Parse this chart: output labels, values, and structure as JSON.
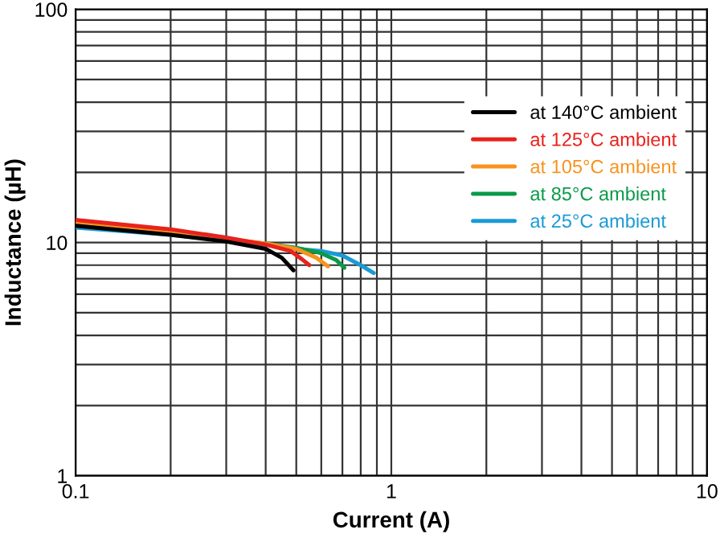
{
  "chart_data": {
    "type": "line",
    "xlabel": "Current (A)",
    "ylabel": "Inductance (µH)",
    "log": "xy",
    "grid": true,
    "legend": "top right",
    "line_style": "solid",
    "marker": "none",
    "xlim": [
      0.1,
      10
    ],
    "ylim": [
      1,
      100
    ],
    "xticks": [
      0.1,
      {
        "value": 0.2,
        "label": null
      },
      {
        "value": 0.3,
        "label": null
      },
      {
        "value": 0.4,
        "label": null
      },
      {
        "value": 0.5,
        "label": null
      },
      {
        "value": 0.6,
        "label": null
      },
      {
        "value": 0.7,
        "label": null
      },
      {
        "value": 0.8,
        "label": null
      },
      {
        "value": 0.9,
        "label": null
      },
      1,
      {
        "value": 2,
        "label": null
      },
      {
        "value": 3,
        "label": null
      },
      {
        "value": 4,
        "label": null
      },
      {
        "value": 5,
        "label": null
      },
      {
        "value": 6,
        "label": null
      },
      {
        "value": 7,
        "label": null
      },
      {
        "value": 8,
        "label": null
      },
      {
        "value": 9,
        "label": null
      },
      10
    ],
    "yticks": [
      1,
      {
        "value": 2,
        "label": null
      },
      {
        "value": 3,
        "label": null
      },
      {
        "value": 4,
        "label": null
      },
      {
        "value": 5,
        "label": null
      },
      {
        "value": 6,
        "label": null
      },
      {
        "value": 7,
        "label": null
      },
      {
        "value": 8,
        "label": null
      },
      {
        "value": 9,
        "label": null
      },
      10,
      {
        "value": 20,
        "label": null
      },
      {
        "value": 30,
        "label": null
      },
      {
        "value": 40,
        "label": null
      },
      {
        "value": 50,
        "label": null
      },
      {
        "value": 60,
        "label": null
      },
      {
        "value": 70,
        "label": null
      },
      {
        "value": 80,
        "label": null
      },
      {
        "value": 90,
        "label": null
      },
      100
    ],
    "series": [
      {
        "name": "at 140°C ambient",
        "color": "#000000",
        "x": [
          0.1,
          0.2,
          0.3,
          0.4,
          0.45,
          0.49
        ],
        "values": [
          11.8,
          10.8,
          10.1,
          9.4,
          8.6,
          7.6
        ]
      },
      {
        "name": "at 125°C ambient",
        "color": "#e8221c",
        "x": [
          0.1,
          0.2,
          0.3,
          0.4,
          0.48,
          0.52,
          0.55
        ],
        "values": [
          12.5,
          11.4,
          10.5,
          9.8,
          9.2,
          8.5,
          8.0
        ]
      },
      {
        "name": "at 105°C ambient",
        "color": "#f7931e",
        "x": [
          0.1,
          0.2,
          0.3,
          0.4,
          0.5,
          0.58,
          0.63
        ],
        "values": [
          12.2,
          11.1,
          10.4,
          9.9,
          9.4,
          8.6,
          7.9
        ]
      },
      {
        "name": "at 85°C ambient",
        "color": "#0a9a48",
        "x": [
          0.3,
          0.4,
          0.5,
          0.6,
          0.67,
          0.71
        ],
        "values": [
          10.3,
          9.9,
          9.5,
          9.0,
          8.4,
          7.8
        ]
      },
      {
        "name": "at 25°C ambient",
        "color": "#1a9ad6",
        "x": [
          0.1,
          0.2,
          0.3,
          0.4,
          0.5,
          0.6,
          0.7,
          0.8,
          0.88
        ],
        "values": [
          11.6,
          10.8,
          10.2,
          9.8,
          9.4,
          9.2,
          8.8,
          8.0,
          7.4
        ]
      }
    ]
  }
}
